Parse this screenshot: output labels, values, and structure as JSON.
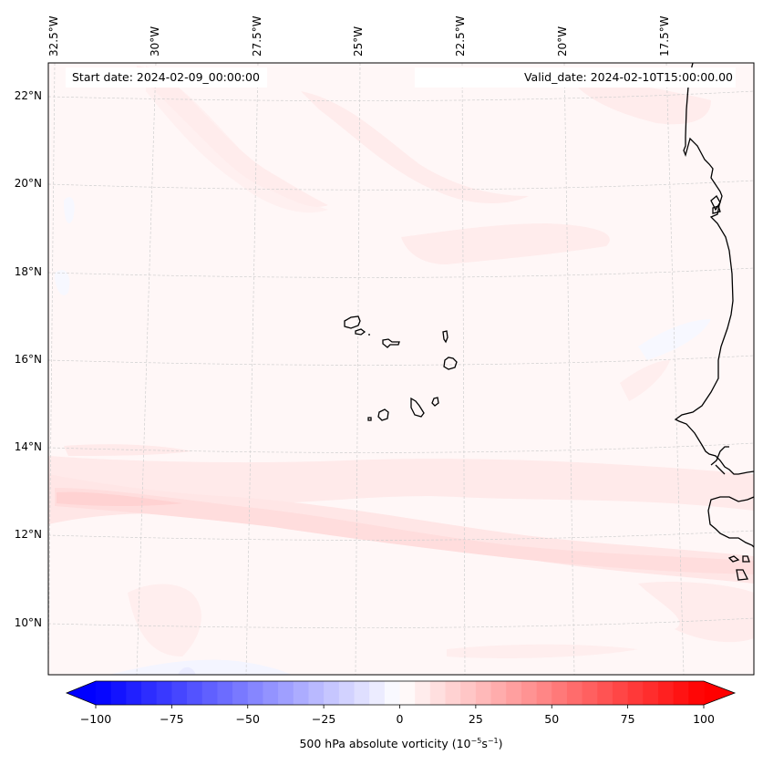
{
  "chart_data": {
    "type": "heatmap",
    "title": "",
    "start_date_label": "Start date: 2024-02-09_00:00:00",
    "valid_date_label": "Valid_date: 2024-02-10T15:00:00.00",
    "longitude_ticks": [
      "32.5°W",
      "30°W",
      "27.5°W",
      "25°W",
      "22.5°W",
      "20°W",
      "17.5°W"
    ],
    "longitude_values": [
      -32.5,
      -30,
      -27.5,
      -25,
      -22.5,
      -20,
      -17.5
    ],
    "latitude_ticks": [
      "22°N",
      "20°N",
      "18°N",
      "16°N",
      "14°N",
      "12°N",
      "10°N"
    ],
    "latitude_values": [
      22,
      20,
      18,
      16,
      14,
      12,
      10
    ],
    "extent": {
      "lon_min": -33,
      "lon_max": -15.8,
      "lat_min": 8.9,
      "lat_max": 22.8
    },
    "gridlines": true,
    "field": "500 hPa absolute vorticity",
    "colorbar": {
      "cmap": "bwr",
      "vmin": -100,
      "vmax": 100,
      "levels_step": 5,
      "extend": "both",
      "ticks": [
        -100,
        -75,
        -50,
        -25,
        0,
        25,
        50,
        75,
        100
      ],
      "tick_labels": [
        "−100",
        "−75",
        "−50",
        "−25",
        "0",
        "25",
        "50",
        "75",
        "100"
      ],
      "label_text": "500 hPa absolute vorticity (10",
      "label_exp1": "−5",
      "label_mid": "s",
      "label_exp2": "−1",
      "label_end": ")",
      "placement": "bottom"
    },
    "features": {
      "coastline": "West Africa (Mauritania, Senegal, Gambia, Guinea-Bissau)",
      "islands": "Cape Verde"
    },
    "field_summary": [
      {
        "region": "background",
        "approx_value": 2
      },
      {
        "region": "band ~12-13.5°N west",
        "approx_value": 15
      },
      {
        "region": "band ~12-13°N central/east",
        "approx_value": 10
      },
      {
        "region": "northern streak 20-22°N",
        "approx_value": 7
      },
      {
        "region": "weak negatives scattered",
        "approx_value": -3
      }
    ]
  }
}
